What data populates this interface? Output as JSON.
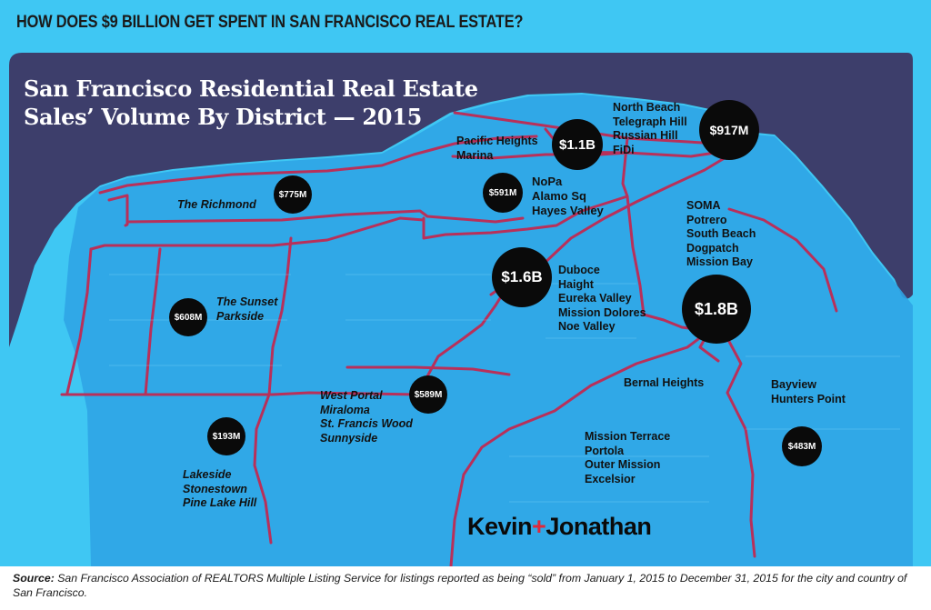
{
  "header": {
    "title": "HOW DOES $9 BILLION GET SPENT IN SAN FRANCISCO REAL ESTATE?"
  },
  "map": {
    "title_line1": "San Francisco Residential Real Estate",
    "title_line2": "Sales’ Volume By District — 2015",
    "colors": {
      "background": "#3fc7f3",
      "sky": "#3d3e6b",
      "land": "#2fa4e6",
      "boundary": "#b8305a",
      "marker": "#0a0a0a"
    },
    "districts": [
      {
        "id": "richmond",
        "volume": "$775M",
        "names": [
          "The Richmond"
        ]
      },
      {
        "id": "sunset",
        "volume": "$608M",
        "names": [
          "The Sunset",
          "Parkside"
        ]
      },
      {
        "id": "lakeside",
        "volume": "$193M",
        "names": [
          "Lakeside",
          "Stonestown",
          "Pine Lake Hill"
        ]
      },
      {
        "id": "west-portal",
        "volume": "$589M",
        "names": [
          "West Portal",
          "Miraloma",
          "St. Francis Wood",
          "Sunnyside"
        ]
      },
      {
        "id": "pacific-heights",
        "volume": "$1.1B",
        "names": [
          "Pacific Heights",
          "Marina"
        ]
      },
      {
        "id": "nopa",
        "volume": "$591M",
        "names": [
          "NoPa",
          "Alamo Sq",
          "Hayes Valley"
        ]
      },
      {
        "id": "north-beach",
        "volume": "$917M",
        "names": [
          "North Beach",
          "Telegraph Hill",
          "Russian Hill",
          "FiDi"
        ]
      },
      {
        "id": "duboce",
        "volume": "$1.6B",
        "names": [
          "Duboce",
          "Haight",
          "Eureka Valley",
          "Mission Dolores",
          "Noe Valley"
        ]
      },
      {
        "id": "soma",
        "volume": "$1.8B",
        "names": [
          "SOMA",
          "Potrero",
          "South Beach",
          "Dogpatch",
          "Mission Bay"
        ]
      },
      {
        "id": "bernal",
        "volume": "",
        "names": [
          "Bernal Heights"
        ]
      },
      {
        "id": "mission-terrace",
        "volume": "",
        "names": [
          "Mission Terrace",
          "Portola",
          "Outer Mission",
          "Excelsior"
        ]
      },
      {
        "id": "bayview",
        "volume": "$483M",
        "names": [
          "Bayview",
          "Hunters Point"
        ]
      }
    ],
    "brand": {
      "part1": "Kevin",
      "plus": "+",
      "part2": "Jonathan"
    }
  },
  "footer": {
    "source_label": "Source:",
    "source_text": " San Francisco Association of REALTORS Multiple Listing Service for listings reported as being “sold” from January 1, 2015 to December 31, 2015 for the city and country of San Francisco."
  }
}
